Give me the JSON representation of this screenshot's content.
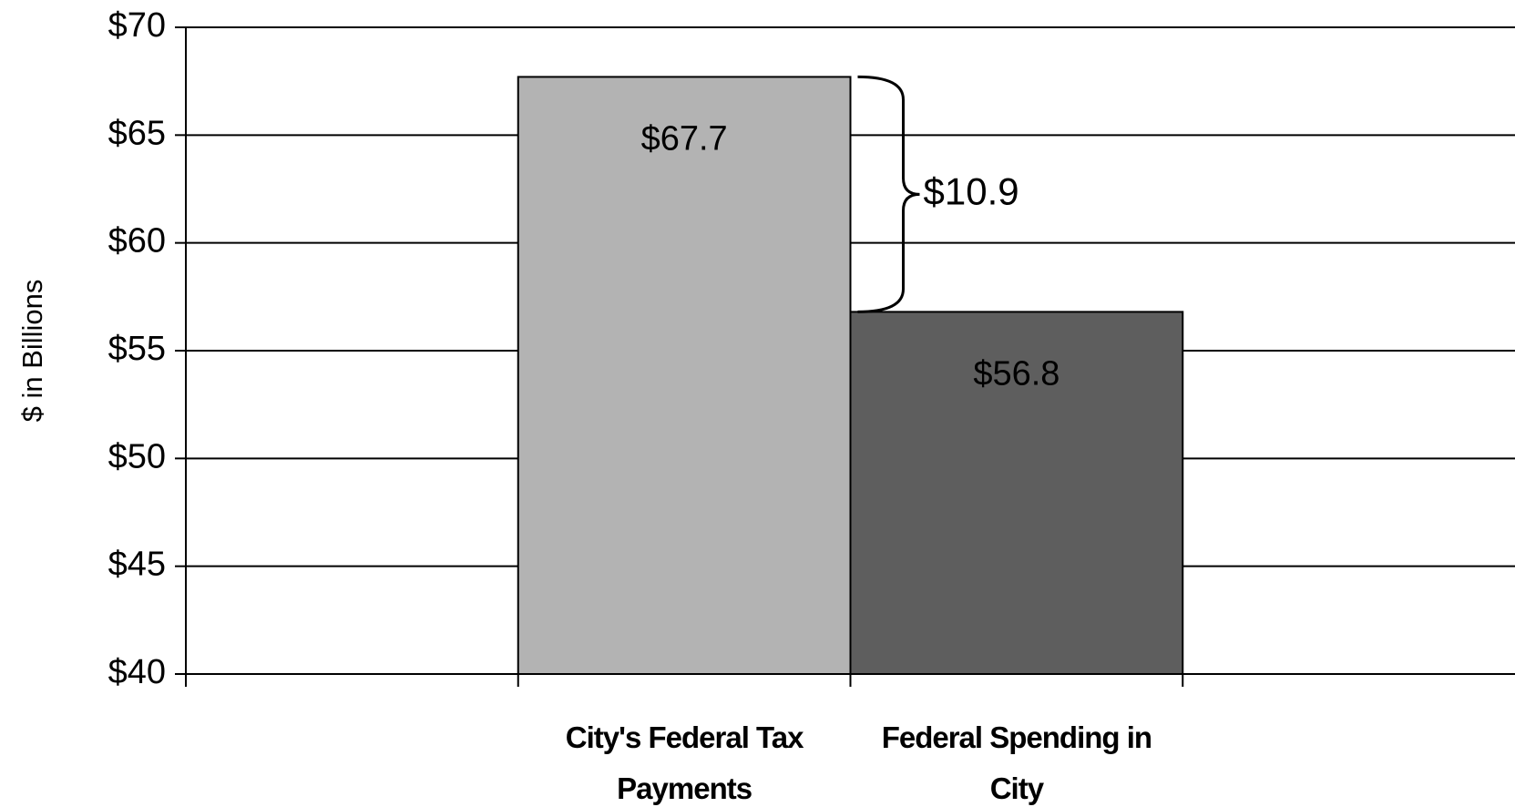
{
  "chart_data": {
    "type": "bar",
    "y_label": "$ in Billions",
    "categories": [
      null,
      "City's Federal Tax Payments",
      "Federal Spending in City",
      null
    ],
    "values": [
      null,
      67.7,
      56.8,
      null
    ],
    "value_labels": [
      null,
      "$67.7",
      "$56.8",
      null
    ],
    "colors": [
      null,
      "#b3b3b3",
      "#5e5e5e",
      null
    ],
    "annotation": "$10.9",
    "ylim": [
      40,
      70
    ],
    "yticks": [
      {
        "value": 40,
        "label": "$40"
      },
      {
        "value": 45,
        "label": "$45"
      },
      {
        "value": 50,
        "label": "$50"
      },
      {
        "value": 55,
        "label": "$55"
      },
      {
        "value": 60,
        "label": "$60"
      },
      {
        "value": 65,
        "label": "$65"
      },
      {
        "value": 70,
        "label": "$70"
      }
    ],
    "grid": true
  }
}
